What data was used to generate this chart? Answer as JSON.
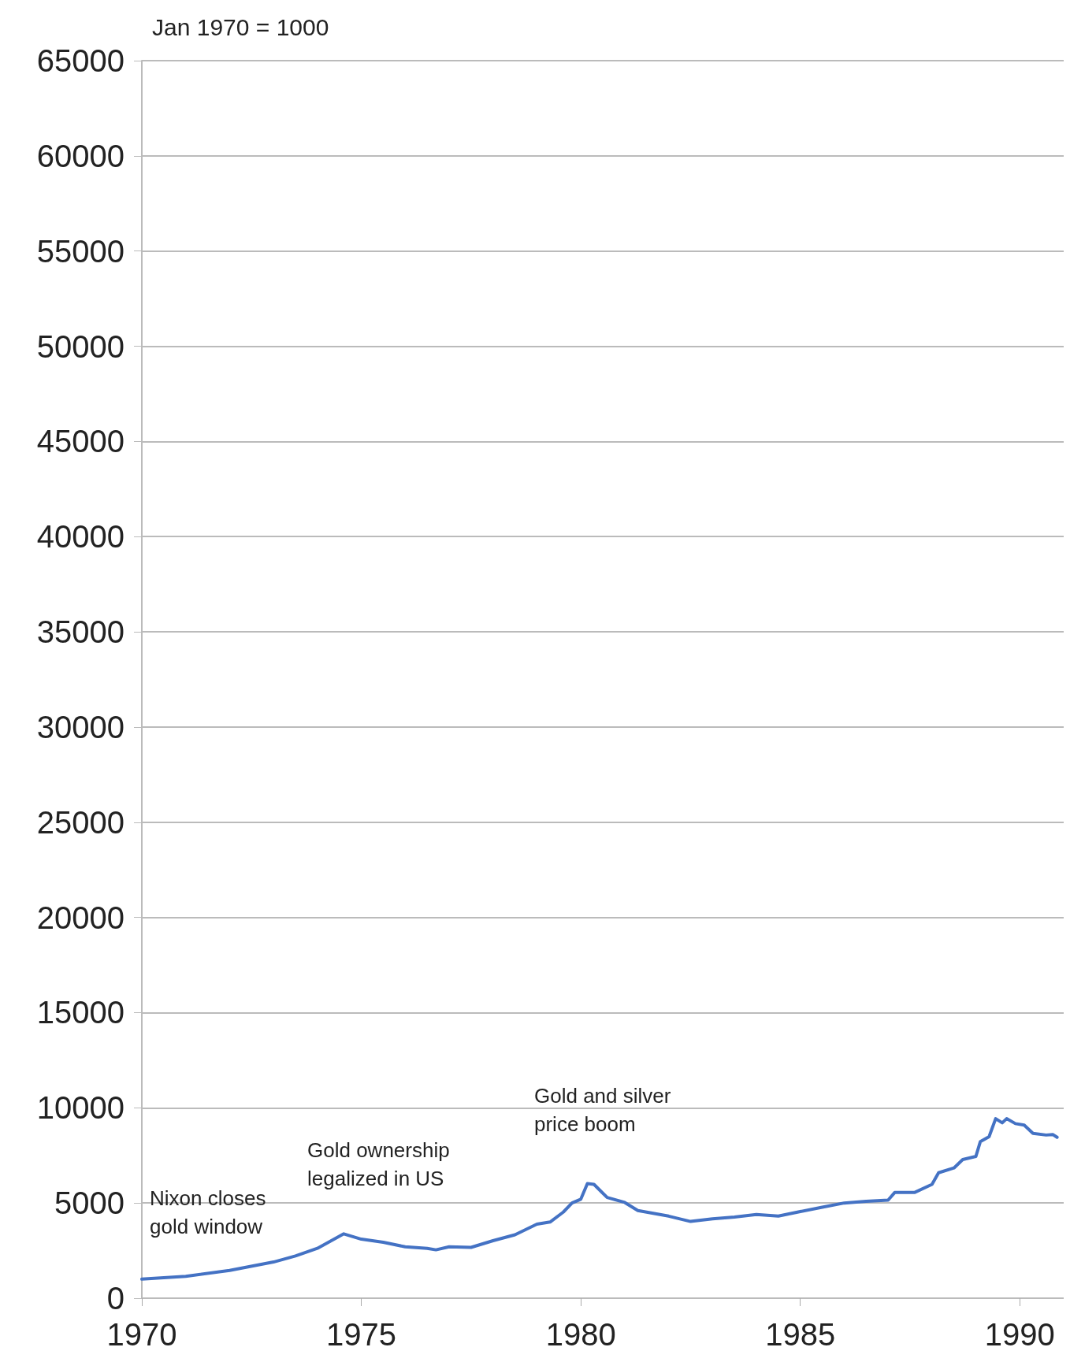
{
  "chart_data": {
    "type": "line",
    "title": "Jan 1970 = 1000",
    "annotations": [
      "Nixon closes\ngold window",
      "Gold ownership\nlegalized in US",
      "Gold and silver\nprice boom"
    ],
    "series": [
      {
        "color": "#4472c4",
        "x": [
          1970,
          1971,
          1972,
          1973,
          1973.5,
          1974,
          1974.6,
          1975,
          1975.5,
          1976,
          1976.5,
          1976.7,
          1977,
          1977.5,
          1978,
          1978.5,
          1979,
          1979.3,
          1979.6,
          1979.8,
          1980,
          1980.15,
          1980.3,
          1980.6,
          1981,
          1981.3,
          1982,
          1982.5,
          1983,
          1983.5,
          1984,
          1984.5,
          1985,
          1985.5,
          1986,
          1986.5,
          1987,
          1987.15,
          1987.6,
          1988,
          1988.15,
          1988.5,
          1988.7,
          1989,
          1989.1,
          1989.3,
          1989.45,
          1989.6,
          1989.7,
          1989.9,
          1990.1,
          1990.3,
          1990.6,
          1990.75,
          1990.85
        ],
        "values": [
          1000,
          1150,
          1460,
          1900,
          2220,
          2620,
          3380,
          3100,
          2940,
          2700,
          2620,
          2540,
          2700,
          2670,
          3020,
          3330,
          3890,
          4000,
          4520,
          5000,
          5200,
          6020,
          5980,
          5290,
          5030,
          4600,
          4310,
          4030,
          4170,
          4260,
          4400,
          4310,
          4550,
          4780,
          5000,
          5090,
          5150,
          5550,
          5550,
          5980,
          6590,
          6840,
          7280,
          7450,
          8220,
          8480,
          9430,
          9210,
          9430,
          9170,
          9090,
          8660,
          8570,
          8600,
          8450
        ]
      }
    ],
    "xlim": [
      1970,
      1991
    ],
    "xticks": [
      1970,
      1975,
      1980,
      1985,
      1990
    ],
    "ylim": [
      0,
      65000
    ],
    "yticks": [
      0,
      5000,
      10000,
      15000,
      20000,
      25000,
      30000,
      35000,
      40000,
      45000,
      50000,
      55000,
      60000,
      65000
    ],
    "grid": "y",
    "marker": "none",
    "line_style": "solid"
  }
}
